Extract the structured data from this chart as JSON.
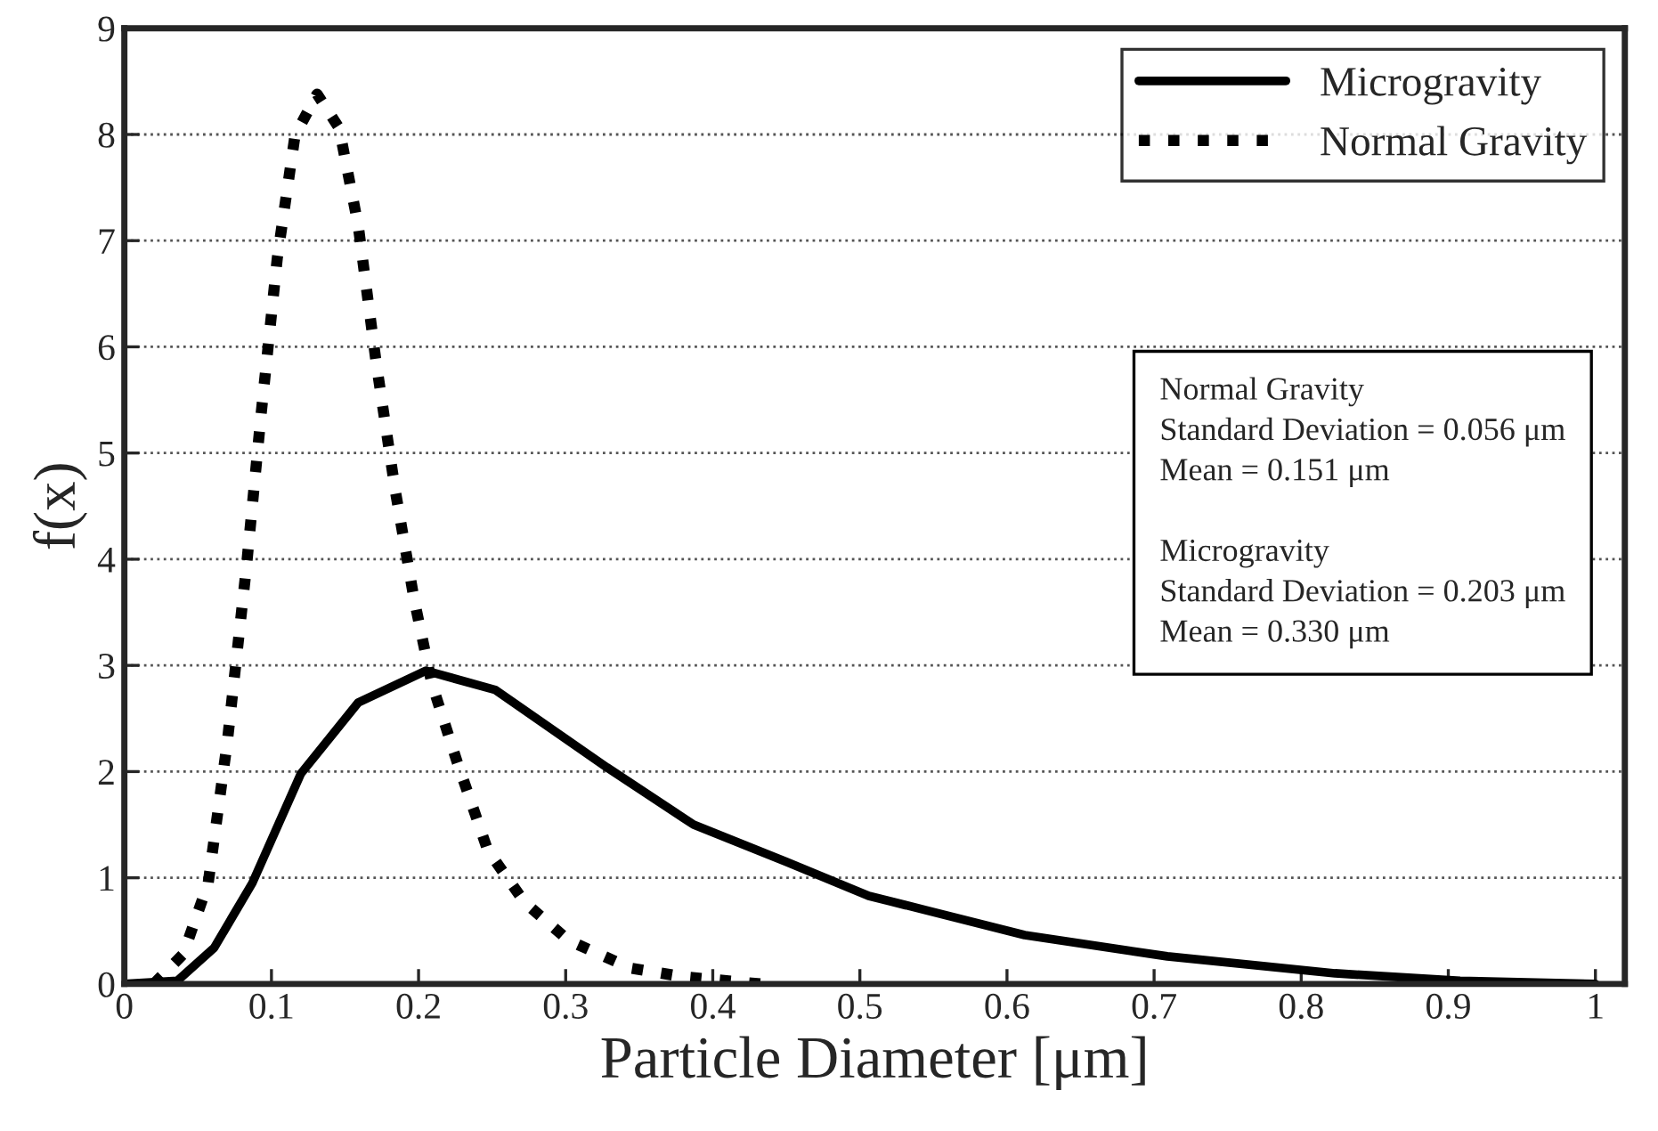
{
  "chart_data": {
    "type": "line",
    "xlabel": "Particle Diameter [μm]",
    "ylabel": "f(x)",
    "xlim": [
      0,
      1.02
    ],
    "xticks": [
      0,
      0.1,
      0.2,
      0.3,
      0.4,
      0.5,
      0.6,
      0.7,
      0.8,
      0.9,
      1
    ],
    "ylim": [
      0,
      9
    ],
    "yticks": [
      0,
      1,
      2,
      3,
      4,
      5,
      6,
      7,
      8,
      9
    ],
    "grid": "y",
    "legend": "top right",
    "series": [
      {
        "name": "Microgravity",
        "color": "#000000",
        "line_style": "solid",
        "x": [
          0,
          0.036,
          0.061,
          0.087,
          0.12,
          0.159,
          0.205,
          0.252,
          0.328,
          0.387,
          0.45,
          0.506,
          0.612,
          0.709,
          0.823,
          0.908,
          1.0
        ],
        "values": [
          0,
          0.03,
          0.34,
          0.95,
          1.98,
          2.65,
          2.95,
          2.77,
          2.04,
          1.5,
          1.15,
          0.83,
          0.46,
          0.26,
          0.1,
          0.03,
          0
        ]
      },
      {
        "name": "Normal Gravity",
        "color": "#000000",
        "line_style": "dotted",
        "x": [
          0.02,
          0.04,
          0.057,
          0.07,
          0.083,
          0.093,
          0.104,
          0.116,
          0.131,
          0.146,
          0.159,
          0.171,
          0.184,
          0.197,
          0.209,
          0.226,
          0.247,
          0.272,
          0.302,
          0.344,
          0.379,
          0.433
        ],
        "values": [
          0,
          0.28,
          0.95,
          2.28,
          3.93,
          5.37,
          6.84,
          7.99,
          8.38,
          8.06,
          7.14,
          5.87,
          4.66,
          3.62,
          2.83,
          2.1,
          1.26,
          0.77,
          0.41,
          0.15,
          0.07,
          0
        ]
      }
    ],
    "annotations": [
      "Normal Gravity",
      "Standard Deviation = 0.056 μm",
      "Mean = 0.151 μm",
      "Microgravity",
      "Standard Deviation = 0.203 μm",
      "Mean = 0.330 μm"
    ]
  }
}
